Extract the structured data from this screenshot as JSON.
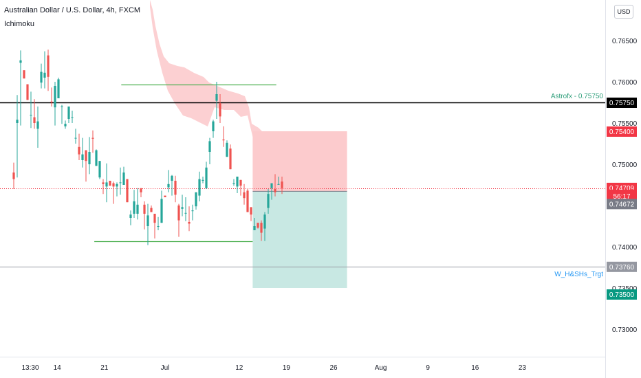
{
  "header": {
    "symbol_title": "Australian Dollar / U.S. Dollar, 4h, FXCM",
    "indicator": "Ichimoku",
    "currency": "USD"
  },
  "chart_data": {
    "type": "candlestick",
    "title": "Australian Dollar / U.S. Dollar, 4h, FXCM",
    "xlabel": "",
    "ylabel": "",
    "ylim": [
      0.7265,
      0.77
    ],
    "y_ticks": [
      "0.73000",
      "0.73500",
      "0.74000",
      "0.74500",
      "0.75000",
      "0.75500",
      "0.76000",
      "0.76500"
    ],
    "x_ticks": [
      "13:30",
      "14",
      "21",
      "Jul",
      "12",
      "19",
      "26",
      "Aug",
      "9",
      "16",
      "23"
    ],
    "x_tick_days": [
      10,
      14,
      21,
      30,
      41,
      48,
      55,
      62,
      69,
      76,
      83
    ],
    "price_labels": [
      {
        "name": "horizontal-line",
        "value": "0.75750",
        "color": "#000000"
      },
      {
        "name": "stop-level",
        "value": "0.75400",
        "color": "#f23645"
      },
      {
        "name": "current-price",
        "value": "0.74709",
        "color": "#f23645"
      },
      {
        "name": "countdown",
        "value": "56:17",
        "color": "#f23645"
      },
      {
        "name": "entry-level",
        "value": "0.74672",
        "color": "#787b86"
      },
      {
        "name": "target-line",
        "value": "0.73760",
        "color": "#9598a1"
      },
      {
        "name": "target-level",
        "value": "0.73500",
        "color": "#089981"
      }
    ],
    "annotations": [
      {
        "text": "Astrofx - 0.75750",
        "y": 0.7575,
        "color": "#2e9e7a"
      },
      {
        "text": "W_H&SHs_Trgt",
        "y": 0.7376,
        "color": "#2196f3"
      }
    ],
    "horizontal_lines": [
      {
        "name": "resistance-line",
        "y": 0.7575,
        "color": "#000000"
      },
      {
        "name": "target-line",
        "y": 0.7376,
        "color": "#9598a1"
      },
      {
        "name": "price-line",
        "y": 0.74709,
        "color": "#f23645"
      }
    ],
    "trend_segments": [
      {
        "name": "top-support-segment",
        "x": [
          23.5,
          46.5
        ],
        "y": 0.7597,
        "color": "#4caf50"
      },
      {
        "name": "bottom-support-segment",
        "x": [
          19.5,
          43.0
        ],
        "y": 0.7407,
        "color": "#4caf50"
      }
    ],
    "position": {
      "entry": 0.74672,
      "stop": 0.754,
      "target": 0.735,
      "x": [
        43.0,
        57.0
      ],
      "loss_color": "#fccbcd",
      "profit_color": "#c8e8e3"
    },
    "candles": [
      [
        0.749,
        0.7502,
        0.747,
        0.7482
      ],
      [
        0.755,
        0.7584,
        0.7484,
        0.7554
      ],
      [
        0.7623,
        0.7638,
        0.7547,
        0.7626
      ],
      [
        0.7614,
        0.7614,
        0.7604,
        0.7604
      ],
      [
        0.7597,
        0.7597,
        0.7578,
        0.7578
      ],
      [
        0.756,
        0.7588,
        0.7544,
        0.756
      ],
      [
        0.7557,
        0.7579,
        0.7543,
        0.755
      ],
      [
        0.7543,
        0.757,
        0.752,
        0.7552
      ],
      [
        0.7599,
        0.7622,
        0.7592,
        0.7612
      ],
      [
        0.7605,
        0.7637,
        0.7592,
        0.7611
      ],
      [
        0.7632,
        0.7639,
        0.7589,
        0.7606
      ],
      [
        0.7576,
        0.7593,
        0.757,
        0.7575
      ],
      [
        0.7569,
        0.76,
        0.7547,
        0.7595
      ],
      [
        0.758,
        0.7605,
        0.758,
        0.7603
      ],
      [
        0.757,
        0.7572,
        0.7549,
        0.757
      ],
      [
        0.7546,
        0.7553,
        0.7543,
        0.7549
      ],
      [
        0.7555,
        0.757,
        0.755,
        0.757
      ],
      [
        0.7557,
        0.7565,
        0.755,
        0.7557
      ],
      [
        0.7532,
        0.7543,
        0.7525,
        0.7532
      ],
      [
        0.7521,
        0.7537,
        0.7505,
        0.7512
      ],
      [
        0.7505,
        0.7532,
        0.7496,
        0.7512
      ],
      [
        0.7517,
        0.7517,
        0.7479,
        0.7504
      ],
      [
        0.75,
        0.7533,
        0.7488,
        0.7515
      ],
      [
        0.7532,
        0.7541,
        0.7514,
        0.7531
      ],
      [
        0.7498,
        0.7518,
        0.7498,
        0.7517
      ],
      [
        0.7484,
        0.7504,
        0.7482,
        0.7504
      ],
      [
        0.7478,
        0.7482,
        0.7464,
        0.7476
      ],
      [
        0.7473,
        0.7501,
        0.7454,
        0.7478
      ],
      [
        0.748,
        0.748,
        0.7474,
        0.7474
      ],
      [
        0.7477,
        0.7479,
        0.7452,
        0.7473
      ],
      [
        0.7473,
        0.7478,
        0.7461,
        0.7476
      ],
      [
        0.7478,
        0.7496,
        0.7463,
        0.7478
      ],
      [
        0.7475,
        0.7497,
        0.7475,
        0.749
      ],
      [
        0.7482,
        0.7482,
        0.7454,
        0.7454
      ],
      [
        0.7435,
        0.7444,
        0.7426,
        0.7439
      ],
      [
        0.744,
        0.7469,
        0.7435,
        0.7455
      ],
      [
        0.744,
        0.7471,
        0.7433,
        0.7451
      ],
      [
        0.7471,
        0.7471,
        0.746,
        0.7466
      ],
      [
        0.7451,
        0.7455,
        0.7421,
        0.744
      ],
      [
        0.7425,
        0.7452,
        0.7402,
        0.7438
      ],
      [
        0.7447,
        0.745,
        0.7442,
        0.7442
      ],
      [
        0.744,
        0.744,
        0.741,
        0.7429
      ],
      [
        0.7425,
        0.7436,
        0.742,
        0.7425
      ],
      [
        0.7429,
        0.7468,
        0.7429,
        0.7458
      ],
      [
        0.7462,
        0.7462,
        0.746,
        0.746
      ],
      [
        0.7472,
        0.7493,
        0.7466,
        0.7476
      ],
      [
        0.748,
        0.7487,
        0.7462,
        0.7486
      ],
      [
        0.748,
        0.7486,
        0.7454,
        0.7463
      ],
      [
        0.745,
        0.7452,
        0.7412,
        0.7432
      ],
      [
        0.7446,
        0.7463,
        0.7437,
        0.7448
      ],
      [
        0.7441,
        0.746,
        0.7431,
        0.7441
      ],
      [
        0.743,
        0.7449,
        0.7419,
        0.7428
      ],
      [
        0.7444,
        0.7451,
        0.7432,
        0.7444
      ],
      [
        0.7449,
        0.7466,
        0.7445,
        0.7466
      ],
      [
        0.7462,
        0.7491,
        0.7455,
        0.7482
      ],
      [
        0.748,
        0.7485,
        0.7477,
        0.7481
      ],
      [
        0.7471,
        0.7503,
        0.747,
        0.7496
      ],
      [
        0.7515,
        0.7532,
        0.75,
        0.7528
      ],
      [
        0.754,
        0.7554,
        0.7532,
        0.7552
      ],
      [
        0.7577,
        0.76,
        0.7555,
        0.7585
      ],
      [
        0.7574,
        0.7585,
        0.755,
        0.7558
      ],
      [
        0.753,
        0.7546,
        0.7521,
        0.7529
      ],
      [
        0.7509,
        0.7529,
        0.7509,
        0.7526
      ],
      [
        0.7519,
        0.7524,
        0.7494,
        0.7494
      ],
      [
        0.7476,
        0.7482,
        0.7474,
        0.7477
      ],
      [
        0.7473,
        0.7485,
        0.7465,
        0.7485
      ],
      [
        0.7481,
        0.7481,
        0.7462,
        0.7474
      ],
      [
        0.7466,
        0.7476,
        0.7451,
        0.7459
      ],
      [
        0.7468,
        0.747,
        0.7442,
        0.7442
      ],
      [
        0.7448,
        0.7448,
        0.7431,
        0.7439
      ],
      [
        0.742,
        0.7435,
        0.742,
        0.7425
      ],
      [
        0.7429,
        0.7429,
        0.7422,
        0.7423
      ],
      [
        0.7429,
        0.7432,
        0.7407,
        0.7417
      ],
      [
        0.7422,
        0.7442,
        0.7407,
        0.7439
      ],
      [
        0.7447,
        0.747,
        0.744,
        0.7464
      ],
      [
        0.7471,
        0.7477,
        0.7457,
        0.7477
      ],
      [
        0.747,
        0.7488,
        0.7461,
        0.7466
      ],
      [
        0.7476,
        0.7485,
        0.7475,
        0.7476
      ],
      [
        0.7479,
        0.7485,
        0.7464,
        0.7471
      ]
    ]
  }
}
